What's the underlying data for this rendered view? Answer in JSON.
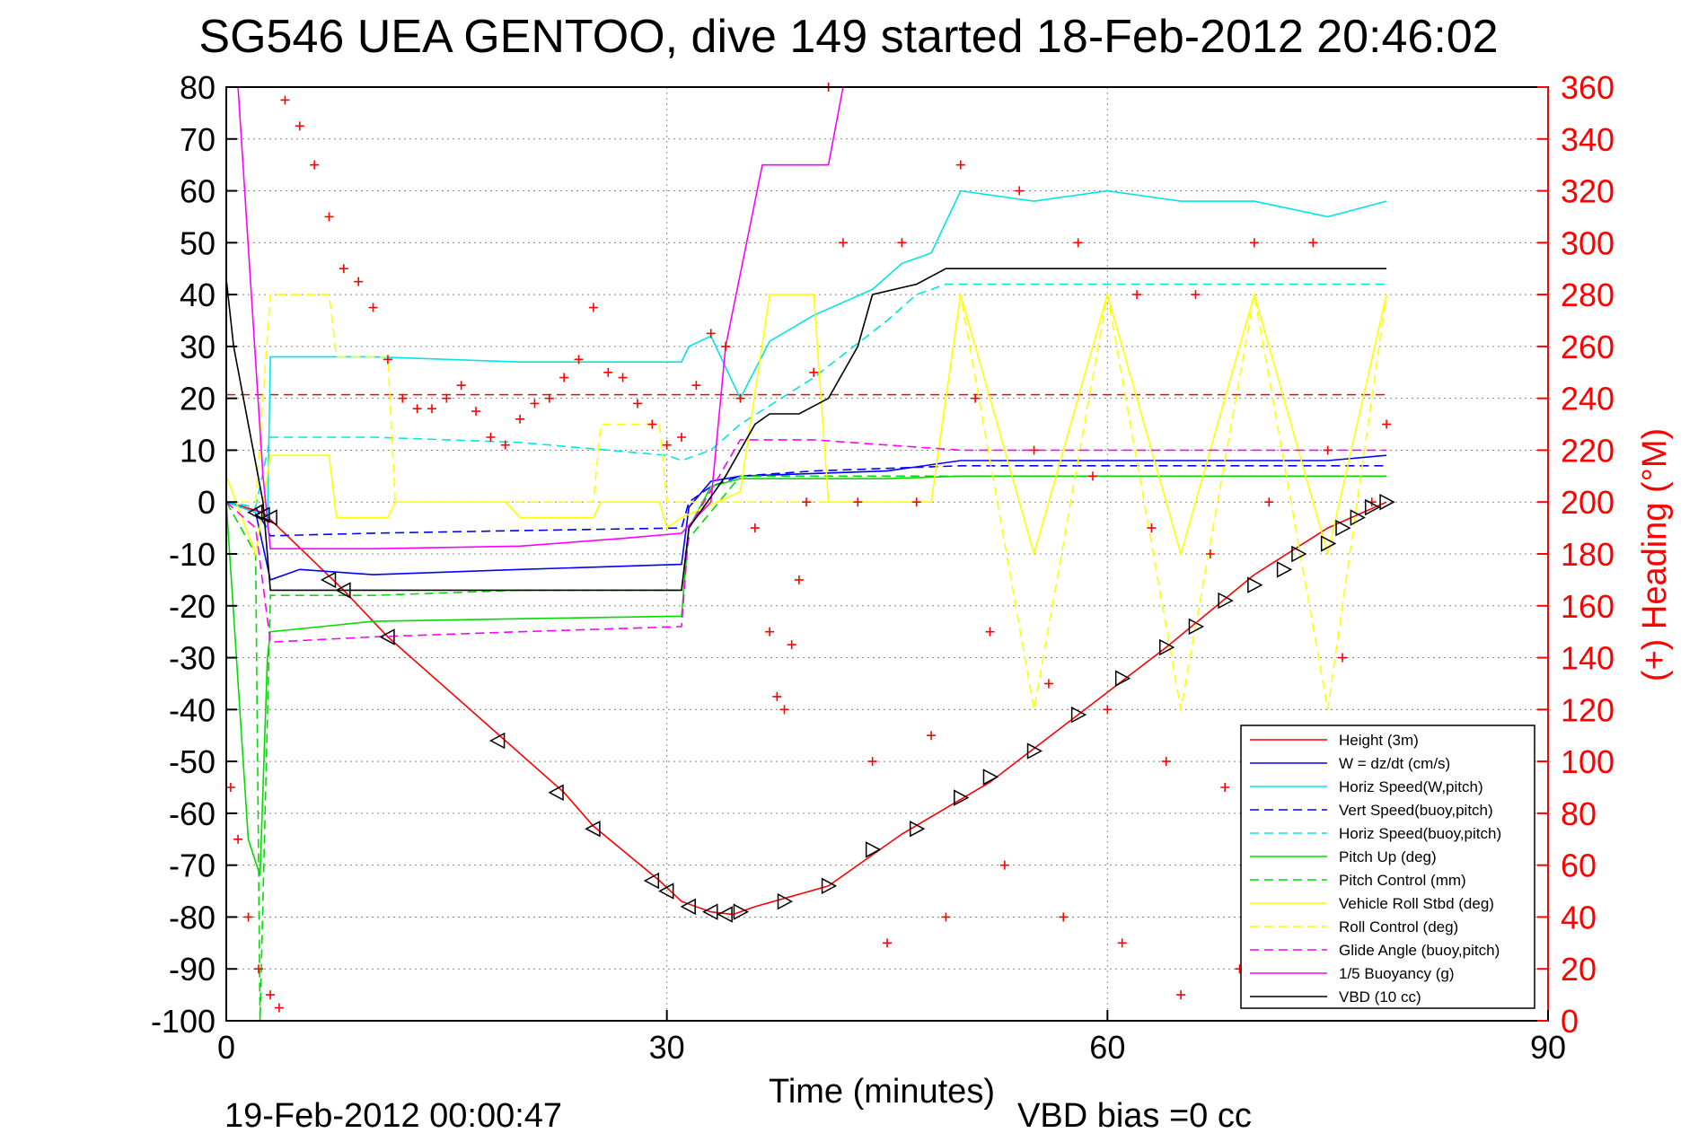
{
  "title": "SG546 UEA GENTOO, dive 149 started 18-Feb-2012 20:46:02",
  "footer_left": "19-Feb-2012 00:00:47",
  "footer_right": "VBD bias =0 cc",
  "colors": {
    "height": "#ff0000",
    "w": "#0000ff",
    "horiz": "#00e5e5",
    "pitch": "#00dd00",
    "roll": "#ffff00",
    "glide": "#ff00ff",
    "vbd": "#000000",
    "heading": "#ff0000"
  },
  "chart_data": {
    "type": "line",
    "xlabel": "Time (minutes)",
    "ylabel": "",
    "y2label": "(+) Heading (°M)",
    "xlim": [
      0,
      90
    ],
    "ylim": [
      -100,
      80
    ],
    "y2lim": [
      0,
      360
    ],
    "xticks": [
      "0",
      "30",
      "60",
      "90"
    ],
    "yticks": [
      "80",
      "70",
      "60",
      "50",
      "40",
      "30",
      "20",
      "10",
      "0",
      "-10",
      "-20",
      "-30",
      "-40",
      "-50",
      "-60",
      "-70",
      "-80",
      "-90",
      "-100"
    ],
    "y2ticks": [
      "360",
      "340",
      "320",
      "300",
      "280",
      "260",
      "240",
      "220",
      "200",
      "180",
      "160",
      "140",
      "120",
      "100",
      "80",
      "60",
      "40",
      "20",
      "0"
    ],
    "grid": "dotted",
    "legend_position": "bottom-right",
    "reference_line": {
      "y": 20.7,
      "color": "#ff0000",
      "style": "dashed"
    },
    "series": [
      {
        "name": "Height (3m)",
        "color": "#ff0000",
        "dash": "solid",
        "x": [
          0,
          2.5,
          8,
          11,
          19,
          23,
          25,
          29.5,
          31,
          33,
          34.5,
          36,
          41,
          46,
          52,
          58,
          64,
          70,
          75,
          79
        ],
        "y": [
          0,
          -2,
          -17,
          -26,
          -46,
          -56,
          -62.5,
          -73,
          -77,
          -79,
          -79.5,
          -78,
          -74,
          -64,
          -54,
          -41,
          -28,
          -14,
          -5,
          0
        ]
      },
      {
        "name": "W = dz/dt (cm/s)",
        "color": "#0000ff",
        "dash": "solid",
        "x": [
          0,
          2,
          3,
          5,
          10,
          20,
          31,
          31.5,
          33,
          35,
          40,
          45,
          50,
          55,
          60,
          65,
          70,
          75,
          79
        ],
        "y": [
          0,
          -2,
          -15,
          -13,
          -14,
          -13,
          -12,
          -1,
          4,
          5,
          5.5,
          6,
          8,
          8,
          8,
          8,
          8,
          8,
          9
        ]
      },
      {
        "name": "Horiz Speed(W,pitch)",
        "color": "#00e5e5",
        "dash": "solid",
        "x": [
          0,
          2,
          2.8,
          3,
          10,
          20,
          31,
          31.5,
          33,
          35,
          37,
          40,
          44,
          46,
          48,
          50,
          55,
          60,
          65,
          70,
          75,
          79
        ],
        "y": [
          0,
          -2,
          -5,
          28,
          28,
          27,
          27,
          30,
          32,
          20,
          31,
          36,
          41,
          46,
          48,
          60,
          58,
          60,
          58,
          58,
          55,
          58
        ]
      },
      {
        "name": "Vert Speed(buoy,pitch)",
        "color": "#0000ff",
        "dash": "dashed",
        "x": [
          0,
          2,
          3,
          10,
          20,
          31,
          31.5,
          33,
          35,
          40,
          45,
          50,
          55,
          60,
          65,
          70,
          75,
          79
        ],
        "y": [
          0,
          -1,
          -6.5,
          -6,
          -5.5,
          -5,
          0,
          3,
          5,
          6,
          6.5,
          7,
          7,
          7,
          7,
          7,
          7,
          7
        ]
      },
      {
        "name": "Horiz Speed(buoy,pitch)",
        "color": "#00e5e5",
        "dash": "dashed",
        "x": [
          0,
          2,
          3,
          10,
          20,
          30,
          31,
          33,
          35,
          40,
          45,
          47,
          49,
          55,
          60,
          65,
          70,
          75,
          79
        ],
        "y": [
          0,
          -1,
          12.5,
          12.5,
          11.5,
          9,
          8,
          10,
          15,
          24,
          35,
          40,
          42,
          42,
          42,
          42,
          42,
          42,
          42
        ]
      },
      {
        "name": "Pitch Up (deg)",
        "color": "#00dd00",
        "dash": "solid",
        "x": [
          0,
          1.5,
          2.3,
          2.8,
          3,
          10,
          20,
          31,
          31.5,
          33,
          35,
          40,
          45,
          50,
          55,
          60,
          65,
          70,
          75,
          79
        ],
        "y": [
          0,
          -65,
          -72,
          -30,
          -25,
          -23,
          -22.5,
          -22,
          -5,
          3,
          4.5,
          4.5,
          4.5,
          5,
          5,
          5,
          5,
          5,
          5,
          5
        ]
      },
      {
        "name": "Pitch Control (mm)",
        "color": "#00dd00",
        "dash": "dashed",
        "x": [
          0,
          2,
          2.3,
          3,
          10,
          20,
          31,
          31.5,
          35,
          40,
          45,
          50,
          55,
          60,
          65,
          70,
          75,
          79
        ],
        "y": [
          0,
          -10,
          -100,
          -18,
          -18,
          -17,
          -17,
          -7,
          5,
          5,
          5,
          5,
          5,
          5,
          5,
          5,
          5,
          5
        ]
      },
      {
        "name": "Vehicle Roll Stbd (deg)",
        "color": "#ffff00",
        "dash": "solid",
        "x": [
          0,
          2,
          3,
          7,
          7.5,
          11,
          11.5,
          19,
          20,
          25,
          25.5,
          29.5,
          30,
          31,
          35,
          37,
          40,
          41,
          45,
          48,
          50,
          55,
          60,
          65,
          70,
          75,
          79
        ],
        "y": [
          5,
          -10,
          9,
          9,
          -3,
          -3,
          0,
          0,
          -3,
          -3,
          0,
          0,
          -5,
          -3,
          2,
          40,
          40,
          0,
          0,
          0,
          40,
          -10,
          40,
          -10,
          40,
          -10,
          40
        ]
      },
      {
        "name": "Roll Control (deg)",
        "color": "#ffff00",
        "dash": "dashed",
        "x": [
          0,
          2,
          3,
          7,
          7.5,
          11,
          11.5,
          25,
          25.5,
          29.5,
          30,
          31,
          35,
          40,
          45,
          48,
          50,
          55,
          60,
          65,
          70,
          75,
          79
        ],
        "y": [
          0,
          0,
          40,
          40,
          28,
          28,
          0,
          0,
          15,
          15,
          0,
          0,
          0,
          0,
          0,
          0,
          40,
          -40,
          40,
          -40,
          40,
          -40,
          40
        ]
      },
      {
        "name": "Glide Angle (buoy,pitch)",
        "color": "#ff00ff",
        "dash": "dashed",
        "x": [
          0,
          2,
          3,
          10,
          20,
          31,
          31.5,
          35,
          40,
          45,
          50,
          55,
          60,
          65,
          70,
          75,
          79
        ],
        "y": [
          0,
          -5,
          -27,
          -26,
          -25,
          -24,
          -5,
          12,
          12,
          11,
          10,
          10,
          10,
          10,
          10,
          10,
          10
        ]
      },
      {
        "name": "1/5 Buoyancy (g)",
        "color": "#ff00ff",
        "dash": "solid",
        "x": [
          0,
          0.8,
          2.5,
          3,
          10,
          20,
          27,
          31,
          33,
          34,
          36.5,
          37,
          41,
          42,
          44,
          45,
          46
        ],
        "y": [
          80,
          80,
          5,
          -9,
          -9,
          -8.5,
          -7,
          -6,
          0,
          30,
          65,
          65,
          65,
          80,
          80,
          80,
          80
        ]
      },
      {
        "name": "VBD (10 cc)",
        "color": "#000000",
        "dash": "solid",
        "x": [
          0,
          0.5,
          2.5,
          3,
          10,
          20,
          31,
          31.5,
          34,
          36,
          37,
          39,
          41,
          43,
          44,
          47,
          49,
          55,
          60,
          65,
          70,
          75,
          79
        ],
        "y": [
          43,
          30,
          0,
          -17,
          -17,
          -17,
          -17,
          -5,
          5,
          15,
          17,
          17,
          20,
          30,
          40,
          42,
          45,
          45,
          45,
          45,
          45,
          45,
          45
        ]
      }
    ],
    "heading_points": {
      "name": "(+) Heading (°M)",
      "color": "#ff0000",
      "marker": "+",
      "axis": "right",
      "x": [
        0.3,
        0.8,
        1.5,
        2.2,
        3,
        3.6,
        4,
        5,
        6,
        7,
        8,
        9,
        10,
        11,
        12,
        13,
        14,
        15,
        16,
        17,
        18,
        19,
        20,
        21,
        22,
        23,
        24,
        25,
        26,
        27,
        28,
        29,
        30,
        31,
        32,
        33,
        34,
        35,
        36,
        37,
        37.5,
        38,
        38.5,
        39,
        39.5,
        40,
        41,
        42,
        43,
        44,
        45,
        46,
        47,
        48,
        49,
        50,
        51,
        52,
        53,
        54,
        55,
        56,
        57,
        58,
        59,
        60,
        61,
        62,
        63,
        64,
        65,
        66,
        67,
        68,
        69,
        70,
        71,
        72,
        73,
        74,
        75,
        76,
        77,
        78,
        79
      ],
      "y": [
        90,
        70,
        40,
        20,
        10,
        5,
        355,
        345,
        330,
        310,
        290,
        285,
        275,
        255,
        240,
        236,
        236,
        240,
        245,
        235,
        225,
        222,
        232,
        238,
        240,
        248,
        255,
        275,
        250,
        248,
        238,
        230,
        222,
        225,
        245,
        265,
        260,
        240,
        190,
        150,
        125,
        120,
        145,
        170,
        200,
        250,
        360,
        300,
        200,
        100,
        30,
        300,
        200,
        110,
        40,
        330,
        240,
        150,
        60,
        320,
        220,
        130,
        40,
        300,
        210,
        120,
        30,
        280,
        190,
        100,
        10,
        280,
        180,
        90,
        20,
        300,
        200,
        110,
        40,
        300,
        220,
        140,
        60,
        200,
        230
      ]
    },
    "vbd_markers": {
      "marker": "triangle",
      "color": "#000000",
      "x": [
        2,
        2.5,
        3,
        7,
        8,
        11,
        18.5,
        22.5,
        25,
        29,
        30,
        31.5,
        33,
        34,
        35,
        38,
        41,
        44,
        47,
        50,
        52,
        55,
        58,
        61,
        64,
        66,
        68,
        70,
        72,
        73,
        75,
        76,
        77,
        78,
        79
      ],
      "y": [
        -2,
        -2.5,
        -3,
        -15,
        -17,
        -26,
        -46,
        -56,
        -63,
        -73,
        -75,
        -78,
        -79,
        -79.5,
        -79,
        -77,
        -74,
        -67,
        -63,
        -57,
        -53,
        -48,
        -41,
        -34,
        -28,
        -24,
        -19,
        -16,
        -13,
        -10,
        -8,
        -5,
        -3,
        -1,
        0
      ]
    }
  }
}
